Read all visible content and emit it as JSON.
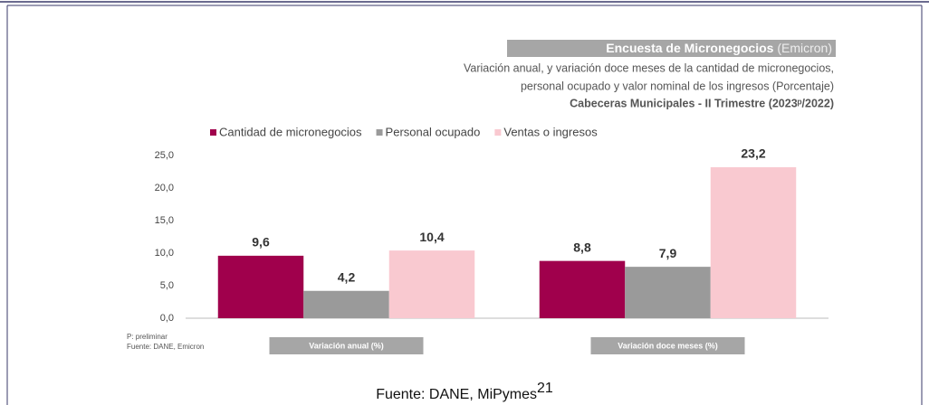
{
  "chart_data": {
    "type": "bar",
    "title": "Encuesta de Micronegocios",
    "title_note": "(Emicron)",
    "subtitle": [
      "Variación anual, y variación doce meses de la cantidad de micronegocios,",
      "personal ocupado y valor nominal de los ingresos (Porcentaje)",
      "Cabeceras Municipales - II Trimestre (2023ᵖ/2022)"
    ],
    "categories": [
      "Variación anual (%)",
      "Variación doce meses (%)"
    ],
    "series": [
      {
        "name": "Cantidad de micronegocios",
        "color": "#a0004c",
        "values": [
          9.6,
          8.8
        ],
        "value_labels": [
          "9,6",
          "8,8"
        ]
      },
      {
        "name": "Personal ocupado",
        "color": "#9a9a9a",
        "values": [
          4.2,
          7.9
        ],
        "value_labels": [
          "4,2",
          "7,9"
        ]
      },
      {
        "name": "Ventas o ingresos",
        "color": "#f9c9d0",
        "values": [
          10.4,
          23.2
        ],
        "value_labels": [
          "10,4",
          "23,2"
        ]
      }
    ],
    "ylim": [
      0,
      25
    ],
    "yticks": [
      {
        "value": 0,
        "label": "0,0"
      },
      {
        "value": 5,
        "label": "5,0"
      },
      {
        "value": 10,
        "label": "10,0"
      },
      {
        "value": 15,
        "label": "15,0"
      },
      {
        "value": 20,
        "label": "20,0"
      },
      {
        "value": 25,
        "label": "25,0"
      }
    ],
    "grid": false,
    "notes": [
      "P: preliminar",
      "Fuente: DANE, Emicron"
    ]
  },
  "caption": "Fuente: DANE, MiPymes",
  "caption_ref": "21"
}
